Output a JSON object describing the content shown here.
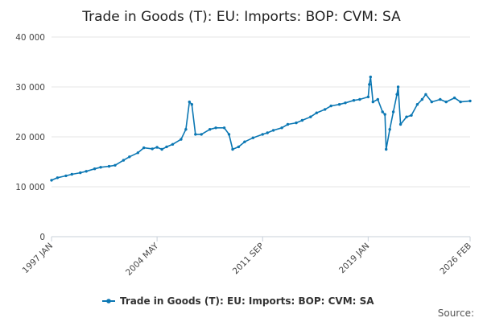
{
  "chart_data": {
    "type": "line",
    "title": "Trade in Goods (T): EU: Imports: BOP: CVM: SA",
    "ylim": [
      0,
      40000
    ],
    "y_ticks": [
      0,
      10000,
      20000,
      30000,
      40000
    ],
    "y_tick_labels": [
      "0",
      "10 000",
      "20 000",
      "30 000",
      "40 000"
    ],
    "xlim": [
      "1997 JAN",
      "2026 FEB"
    ],
    "x_tick_labels": [
      "1997 JAN",
      "2004 MAY",
      "2011 SEP",
      "2019 JAN",
      "2026 FEB"
    ],
    "grid": true,
    "legend_position": "bottom",
    "source_label": "Source:",
    "series": [
      {
        "name": "Trade in Goods (T): EU: Imports: BOP: CVM: SA",
        "color": "#0b77b3",
        "points": [
          [
            "1997 JAN",
            11300
          ],
          [
            "1997 JUN",
            11800
          ],
          [
            "1998 JAN",
            12200
          ],
          [
            "1998 JUN",
            12500
          ],
          [
            "1999 JAN",
            12800
          ],
          [
            "1999 JUN",
            13100
          ],
          [
            "2000 JAN",
            13600
          ],
          [
            "2000 JUN",
            13900
          ],
          [
            "2001 JAN",
            14100
          ],
          [
            "2001 JUN",
            14300
          ],
          [
            "2002 JAN",
            15300
          ],
          [
            "2002 JUN",
            16000
          ],
          [
            "2003 JAN",
            16800
          ],
          [
            "2003 JUN",
            17800
          ],
          [
            "2004 JAN",
            17600
          ],
          [
            "2004 MAY",
            17900
          ],
          [
            "2004 SEP",
            17500
          ],
          [
            "2005 JAN",
            18000
          ],
          [
            "2005 JUN",
            18500
          ],
          [
            "2006 JAN",
            19500
          ],
          [
            "2006 MAY",
            21500
          ],
          [
            "2006 AUG",
            27000
          ],
          [
            "2006 OCT",
            26500
          ],
          [
            "2007 JAN",
            20500
          ],
          [
            "2007 JUN",
            20500
          ],
          [
            "2008 JAN",
            21500
          ],
          [
            "2008 JUN",
            21800
          ],
          [
            "2009 JAN",
            21800
          ],
          [
            "2009 MAY",
            20500
          ],
          [
            "2009 AUG",
            17500
          ],
          [
            "2010 JAN",
            18000
          ],
          [
            "2010 JUN",
            19000
          ],
          [
            "2011 JAN",
            19800
          ],
          [
            "2011 SEP",
            20500
          ],
          [
            "2012 JAN",
            20800
          ],
          [
            "2012 JUN",
            21300
          ],
          [
            "2013 JAN",
            21800
          ],
          [
            "2013 JUN",
            22500
          ],
          [
            "2014 JAN",
            22800
          ],
          [
            "2014 JUN",
            23300
          ],
          [
            "2015 JAN",
            24000
          ],
          [
            "2015 JUN",
            24800
          ],
          [
            "2016 JAN",
            25500
          ],
          [
            "2016 JUN",
            26200
          ],
          [
            "2017 JAN",
            26500
          ],
          [
            "2017 JUN",
            26800
          ],
          [
            "2018 JAN",
            27300
          ],
          [
            "2018 JUN",
            27500
          ],
          [
            "2019 JAN",
            28000
          ],
          [
            "2019 FEB",
            30500
          ],
          [
            "2019 MAR",
            32000
          ],
          [
            "2019 MAY",
            27000
          ],
          [
            "2019 SEP",
            27500
          ],
          [
            "2020 JAN",
            25000
          ],
          [
            "2020 MAR",
            24500
          ],
          [
            "2020 APR",
            17500
          ],
          [
            "2020 JUL",
            21500
          ],
          [
            "2020 OCT",
            25000
          ],
          [
            "2021 JAN",
            28500
          ],
          [
            "2021 FEB",
            30000
          ],
          [
            "2021 APR",
            22500
          ],
          [
            "2021 SEP",
            24000
          ],
          [
            "2022 JAN",
            24300
          ],
          [
            "2022 JUN",
            26500
          ],
          [
            "2022 OCT",
            27500
          ],
          [
            "2023 JAN",
            28500
          ],
          [
            "2023 JUN",
            27000
          ],
          [
            "2024 JAN",
            27500
          ],
          [
            "2024 JUN",
            27000
          ],
          [
            "2025 JAN",
            27800
          ],
          [
            "2025 JUN",
            27000
          ],
          [
            "2026 FEB",
            27200
          ]
        ]
      }
    ]
  }
}
